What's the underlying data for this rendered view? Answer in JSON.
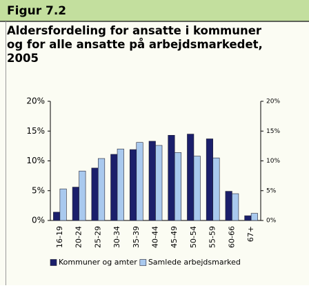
{
  "chart_data": {
    "type": "bar",
    "header": "Figur 7.2",
    "title": "Aldersfordeling for ansatte i kommuner og for alle ansatte på arbejdsmarkedet, 2005",
    "categories": [
      "16-19",
      "20-24",
      "25-29",
      "30-34",
      "35-39",
      "40-44",
      "45-49",
      "50-54",
      "55-59",
      "60-66",
      "67+"
    ],
    "series": [
      {
        "name": "Kommuner og amter",
        "color": "#1b1f6b",
        "values": [
          1.4,
          5.6,
          8.8,
          11.1,
          11.9,
          13.3,
          14.3,
          14.5,
          13.7,
          4.9,
          0.8
        ]
      },
      {
        "name": "Samlede arbejdsmarked",
        "color": "#a9c9ee",
        "values": [
          5.3,
          8.3,
          10.4,
          12.0,
          13.1,
          12.6,
          11.4,
          10.8,
          10.5,
          4.5,
          1.2
        ]
      }
    ],
    "ylim": [
      0,
      20
    ],
    "yticks": [
      {
        "value": 0,
        "label": "0%"
      },
      {
        "value": 5,
        "label": "5%"
      },
      {
        "value": 10,
        "label": "10%"
      },
      {
        "value": 15,
        "label": "15%"
      },
      {
        "value": 20,
        "label": "20%"
      }
    ],
    "y2lim": [
      0,
      20
    ],
    "y2ticks": [
      {
        "value": 0,
        "label": "0%"
      },
      {
        "value": 5,
        "label": "5%"
      },
      {
        "value": 10,
        "label": "10%"
      },
      {
        "value": 15,
        "label": "15%"
      },
      {
        "value": 20,
        "label": "20%"
      }
    ],
    "legend": "bottom"
  }
}
